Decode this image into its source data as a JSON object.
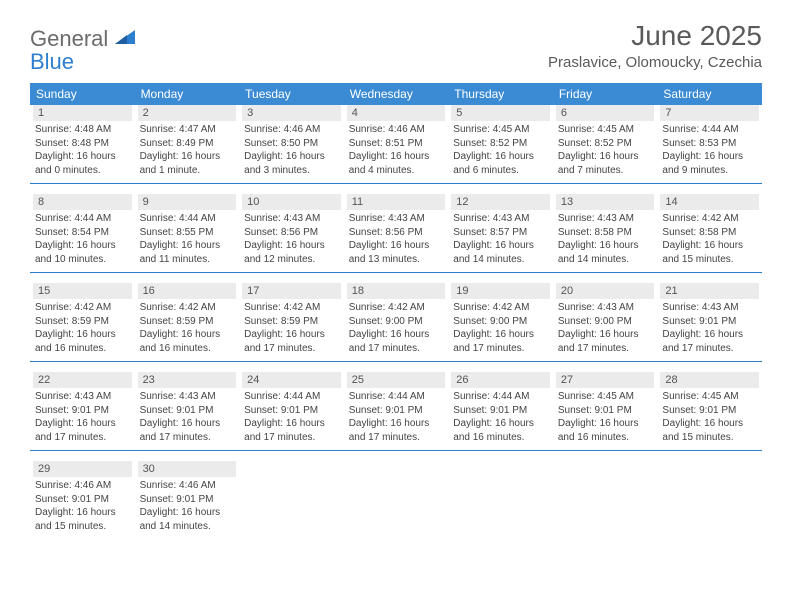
{
  "logo": {
    "text1": "General",
    "text2": "Blue"
  },
  "title": "June 2025",
  "location": "Praslavice, Olomoucky, Czechia",
  "weekday_bg": "#3b8bd4",
  "weekday_color": "#ffffff",
  "daynum_bg": "#ebebeb",
  "border_color": "#2f7fd1",
  "weekdays": [
    "Sunday",
    "Monday",
    "Tuesday",
    "Wednesday",
    "Thursday",
    "Friday",
    "Saturday"
  ],
  "weeks": [
    [
      {
        "n": "1",
        "sr": "Sunrise: 4:48 AM",
        "ss": "Sunset: 8:48 PM",
        "d1": "Daylight: 16 hours",
        "d2": "and 0 minutes."
      },
      {
        "n": "2",
        "sr": "Sunrise: 4:47 AM",
        "ss": "Sunset: 8:49 PM",
        "d1": "Daylight: 16 hours",
        "d2": "and 1 minute."
      },
      {
        "n": "3",
        "sr": "Sunrise: 4:46 AM",
        "ss": "Sunset: 8:50 PM",
        "d1": "Daylight: 16 hours",
        "d2": "and 3 minutes."
      },
      {
        "n": "4",
        "sr": "Sunrise: 4:46 AM",
        "ss": "Sunset: 8:51 PM",
        "d1": "Daylight: 16 hours",
        "d2": "and 4 minutes."
      },
      {
        "n": "5",
        "sr": "Sunrise: 4:45 AM",
        "ss": "Sunset: 8:52 PM",
        "d1": "Daylight: 16 hours",
        "d2": "and 6 minutes."
      },
      {
        "n": "6",
        "sr": "Sunrise: 4:45 AM",
        "ss": "Sunset: 8:52 PM",
        "d1": "Daylight: 16 hours",
        "d2": "and 7 minutes."
      },
      {
        "n": "7",
        "sr": "Sunrise: 4:44 AM",
        "ss": "Sunset: 8:53 PM",
        "d1": "Daylight: 16 hours",
        "d2": "and 9 minutes."
      }
    ],
    [
      {
        "n": "8",
        "sr": "Sunrise: 4:44 AM",
        "ss": "Sunset: 8:54 PM",
        "d1": "Daylight: 16 hours",
        "d2": "and 10 minutes."
      },
      {
        "n": "9",
        "sr": "Sunrise: 4:44 AM",
        "ss": "Sunset: 8:55 PM",
        "d1": "Daylight: 16 hours",
        "d2": "and 11 minutes."
      },
      {
        "n": "10",
        "sr": "Sunrise: 4:43 AM",
        "ss": "Sunset: 8:56 PM",
        "d1": "Daylight: 16 hours",
        "d2": "and 12 minutes."
      },
      {
        "n": "11",
        "sr": "Sunrise: 4:43 AM",
        "ss": "Sunset: 8:56 PM",
        "d1": "Daylight: 16 hours",
        "d2": "and 13 minutes."
      },
      {
        "n": "12",
        "sr": "Sunrise: 4:43 AM",
        "ss": "Sunset: 8:57 PM",
        "d1": "Daylight: 16 hours",
        "d2": "and 14 minutes."
      },
      {
        "n": "13",
        "sr": "Sunrise: 4:43 AM",
        "ss": "Sunset: 8:58 PM",
        "d1": "Daylight: 16 hours",
        "d2": "and 14 minutes."
      },
      {
        "n": "14",
        "sr": "Sunrise: 4:42 AM",
        "ss": "Sunset: 8:58 PM",
        "d1": "Daylight: 16 hours",
        "d2": "and 15 minutes."
      }
    ],
    [
      {
        "n": "15",
        "sr": "Sunrise: 4:42 AM",
        "ss": "Sunset: 8:59 PM",
        "d1": "Daylight: 16 hours",
        "d2": "and 16 minutes."
      },
      {
        "n": "16",
        "sr": "Sunrise: 4:42 AM",
        "ss": "Sunset: 8:59 PM",
        "d1": "Daylight: 16 hours",
        "d2": "and 16 minutes."
      },
      {
        "n": "17",
        "sr": "Sunrise: 4:42 AM",
        "ss": "Sunset: 8:59 PM",
        "d1": "Daylight: 16 hours",
        "d2": "and 17 minutes."
      },
      {
        "n": "18",
        "sr": "Sunrise: 4:42 AM",
        "ss": "Sunset: 9:00 PM",
        "d1": "Daylight: 16 hours",
        "d2": "and 17 minutes."
      },
      {
        "n": "19",
        "sr": "Sunrise: 4:42 AM",
        "ss": "Sunset: 9:00 PM",
        "d1": "Daylight: 16 hours",
        "d2": "and 17 minutes."
      },
      {
        "n": "20",
        "sr": "Sunrise: 4:43 AM",
        "ss": "Sunset: 9:00 PM",
        "d1": "Daylight: 16 hours",
        "d2": "and 17 minutes."
      },
      {
        "n": "21",
        "sr": "Sunrise: 4:43 AM",
        "ss": "Sunset: 9:01 PM",
        "d1": "Daylight: 16 hours",
        "d2": "and 17 minutes."
      }
    ],
    [
      {
        "n": "22",
        "sr": "Sunrise: 4:43 AM",
        "ss": "Sunset: 9:01 PM",
        "d1": "Daylight: 16 hours",
        "d2": "and 17 minutes."
      },
      {
        "n": "23",
        "sr": "Sunrise: 4:43 AM",
        "ss": "Sunset: 9:01 PM",
        "d1": "Daylight: 16 hours",
        "d2": "and 17 minutes."
      },
      {
        "n": "24",
        "sr": "Sunrise: 4:44 AM",
        "ss": "Sunset: 9:01 PM",
        "d1": "Daylight: 16 hours",
        "d2": "and 17 minutes."
      },
      {
        "n": "25",
        "sr": "Sunrise: 4:44 AM",
        "ss": "Sunset: 9:01 PM",
        "d1": "Daylight: 16 hours",
        "d2": "and 17 minutes."
      },
      {
        "n": "26",
        "sr": "Sunrise: 4:44 AM",
        "ss": "Sunset: 9:01 PM",
        "d1": "Daylight: 16 hours",
        "d2": "and 16 minutes."
      },
      {
        "n": "27",
        "sr": "Sunrise: 4:45 AM",
        "ss": "Sunset: 9:01 PM",
        "d1": "Daylight: 16 hours",
        "d2": "and 16 minutes."
      },
      {
        "n": "28",
        "sr": "Sunrise: 4:45 AM",
        "ss": "Sunset: 9:01 PM",
        "d1": "Daylight: 16 hours",
        "d2": "and 15 minutes."
      }
    ],
    [
      {
        "n": "29",
        "sr": "Sunrise: 4:46 AM",
        "ss": "Sunset: 9:01 PM",
        "d1": "Daylight: 16 hours",
        "d2": "and 15 minutes."
      },
      {
        "n": "30",
        "sr": "Sunrise: 4:46 AM",
        "ss": "Sunset: 9:01 PM",
        "d1": "Daylight: 16 hours",
        "d2": "and 14 minutes."
      },
      null,
      null,
      null,
      null,
      null
    ]
  ]
}
